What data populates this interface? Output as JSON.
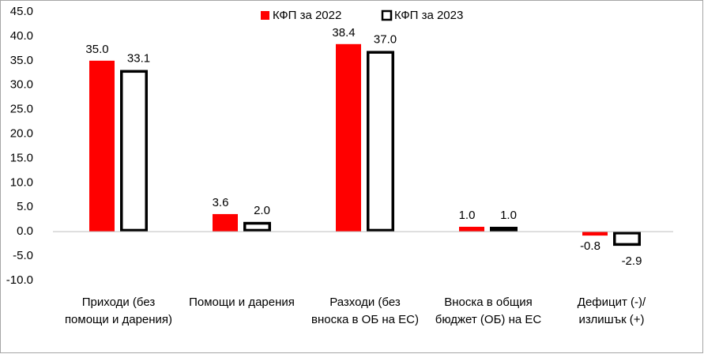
{
  "chart_data": {
    "type": "bar",
    "categories": [
      "Приходи (без помощи и дарения)",
      "Помощи и дарения",
      "Разходи (без вноска в ОБ на ЕС)",
      "Вноска в общия бюджет (ОБ) на ЕС",
      "Дефицит (-)/ излишък (+)"
    ],
    "series": [
      {
        "name": "КФП за 2022",
        "color": "#ff0000",
        "values": [
          35.0,
          3.6,
          38.4,
          1.0,
          -0.8
        ],
        "value_labels": [
          "35.0",
          "3.6",
          "38.4",
          "1.0",
          "-0.8"
        ]
      },
      {
        "name": "КФП за 2023",
        "color": "#ffffff",
        "values": [
          33.1,
          2.0,
          37.0,
          1.0,
          -2.9
        ],
        "value_labels": [
          "33.1",
          "2.0",
          "37.0",
          "1.0",
          "-2.9"
        ]
      }
    ],
    "ylim": [
      -10,
      45
    ],
    "yticks": [
      {
        "value": -10,
        "label": "-10.0"
      },
      {
        "value": -5,
        "label": "-5.0"
      },
      {
        "value": 0,
        "label": "0.0"
      },
      {
        "value": 5,
        "label": "5.0"
      },
      {
        "value": 10,
        "label": "10.0"
      },
      {
        "value": 15,
        "label": "15.0"
      },
      {
        "value": 20,
        "label": "20.0"
      },
      {
        "value": 25,
        "label": "25.0"
      },
      {
        "value": 30,
        "label": "30.0"
      },
      {
        "value": 35,
        "label": "35.0"
      },
      {
        "value": 40,
        "label": "40.0"
      },
      {
        "value": 45,
        "label": "45.0"
      }
    ],
    "legend": "top"
  }
}
